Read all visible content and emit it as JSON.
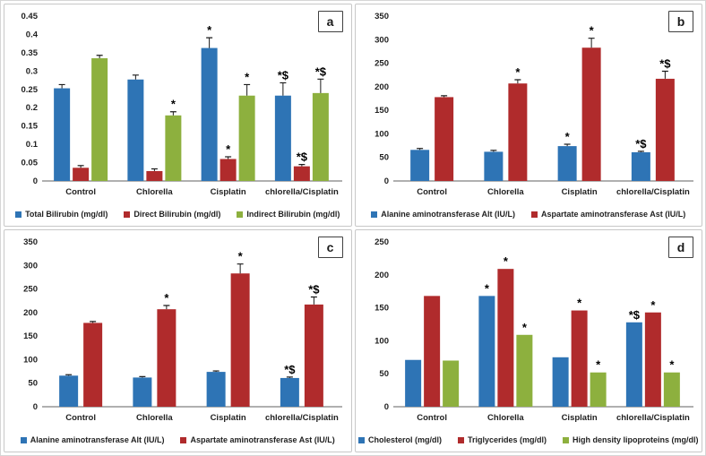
{
  "figure": {
    "background": "#ffffff",
    "panel_border": "#c8c8c8",
    "axis_color": "#b0b0b0",
    "text_color": "#1f1f1f",
    "marker_color": "#000000"
  },
  "chart_data": [
    {
      "panel_letter": "a",
      "type": "bar",
      "title": "",
      "xlabel": "",
      "ylabel": "",
      "grid": false,
      "legend_position": "bottom",
      "error_bars": true,
      "categories": [
        "Control",
        "Chlorella",
        "Cisplatin",
        "chlorella/Cisplatin"
      ],
      "ylim": [
        0,
        0.45
      ],
      "ytick_step": 0.05,
      "series": [
        {
          "name": "Total Bilirubin (mg/dl)",
          "color": "#2E74B5",
          "values": [
            0.253,
            0.277,
            0.363,
            0.233
          ],
          "errors": [
            0.01,
            0.012,
            0.028,
            0.035
          ],
          "sig_markers": [
            "",
            "",
            "*",
            "*$"
          ]
        },
        {
          "name": "Direct Bilirubin (mg/dl)",
          "color": "#B02B2C",
          "values": [
            0.036,
            0.027,
            0.06,
            0.04
          ],
          "errors": [
            0.006,
            0.006,
            0.006,
            0.005
          ],
          "sig_markers": [
            "",
            "",
            "*",
            "*$"
          ]
        },
        {
          "name": "Indirect Bilirubin (mg/dl)",
          "color": "#8DB03E",
          "values": [
            0.335,
            0.179,
            0.233,
            0.24
          ],
          "errors": [
            0.008,
            0.01,
            0.03,
            0.038
          ],
          "sig_markers": [
            "",
            "*",
            "*",
            "*$"
          ]
        }
      ]
    },
    {
      "panel_letter": "b",
      "type": "bar",
      "title": "",
      "xlabel": "",
      "ylabel": "",
      "grid": false,
      "legend_position": "bottom",
      "error_bars": true,
      "categories": [
        "Control",
        "Chlorella",
        "Cisplatin",
        "chlorella/Cisplatin"
      ],
      "ylim": [
        0,
        350
      ],
      "ytick_step": 50,
      "series": [
        {
          "name": "Alanine aminotransferase Alt (IU/L)",
          "color": "#2E74B5",
          "values": [
            66,
            62,
            74,
            61
          ],
          "errors": [
            3,
            3,
            4,
            2
          ],
          "sig_markers": [
            "",
            "",
            "*",
            "*$"
          ]
        },
        {
          "name": "Aspartate aminotransferase Ast (IU/L)",
          "color": "#B02B2C",
          "values": [
            178,
            207,
            283,
            217
          ],
          "errors": [
            3,
            8,
            20,
            16
          ],
          "sig_markers": [
            "",
            "*",
            "*",
            "*$"
          ]
        }
      ]
    },
    {
      "panel_letter": "c",
      "type": "bar",
      "title": "",
      "xlabel": "",
      "ylabel": "",
      "grid": false,
      "legend_position": "bottom",
      "error_bars": true,
      "categories": [
        "Control",
        "Chlorella",
        "Cisplatin",
        "chlorella/Cisplatin"
      ],
      "ylim": [
        0,
        350
      ],
      "ytick_step": 50,
      "series": [
        {
          "name": "Alanine aminotransferase Alt (IU/L)",
          "color": "#2E74B5",
          "values": [
            66,
            62,
            74,
            61
          ],
          "errors": [
            2,
            2,
            2,
            2
          ],
          "sig_markers": [
            "",
            "",
            "",
            "*$"
          ]
        },
        {
          "name": "Aspartate aminotransferase Ast (IU/L)",
          "color": "#B02B2C",
          "values": [
            178,
            207,
            283,
            217
          ],
          "errors": [
            3,
            8,
            20,
            16
          ],
          "sig_markers": [
            "",
            "*",
            "*",
            "*$"
          ]
        }
      ]
    },
    {
      "panel_letter": "d",
      "type": "bar",
      "title": "",
      "xlabel": "",
      "ylabel": "",
      "grid": false,
      "legend_position": "bottom",
      "error_bars": false,
      "categories": [
        "Control",
        "Chlorella",
        "Cisplatin",
        "chlorella/Cisplatin"
      ],
      "ylim": [
        0,
        250
      ],
      "ytick_step": 50,
      "series": [
        {
          "name": "Cholesterol (mg/dl)",
          "color": "#2E74B5",
          "values": [
            71,
            168,
            75,
            128
          ],
          "errors": [
            0,
            0,
            0,
            0
          ],
          "sig_markers": [
            "",
            "*",
            "",
            "*$"
          ]
        },
        {
          "name": "Triglycerides (mg/dl)",
          "color": "#B02B2C",
          "values": [
            168,
            209,
            146,
            143
          ],
          "errors": [
            0,
            0,
            0,
            0
          ],
          "sig_markers": [
            "",
            "*",
            "*",
            "*"
          ]
        },
        {
          "name": "High density lipoproteins (mg/dl)",
          "color": "#8DB03E",
          "values": [
            70,
            109,
            52,
            52
          ],
          "errors": [
            0,
            0,
            0,
            0
          ],
          "sig_markers": [
            "",
            "*",
            "*",
            "*"
          ]
        }
      ]
    }
  ]
}
